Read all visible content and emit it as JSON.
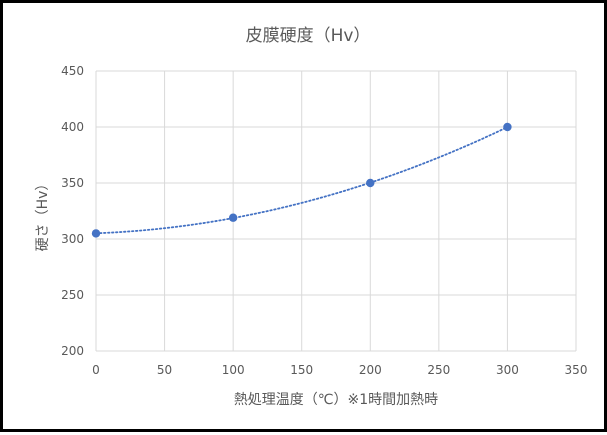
{
  "chart_data": {
    "type": "scatter",
    "title": "皮膜硬度（Hv）",
    "xlabel": "熱処理温度（℃）※1時間加熱時",
    "ylabel": "硬さ（Hv）",
    "xlim": [
      0,
      350
    ],
    "ylim": [
      200,
      450
    ],
    "xticks": [
      "0",
      "50",
      "100",
      "150",
      "200",
      "250",
      "300",
      "350"
    ],
    "yticks": [
      "200",
      "250",
      "300",
      "350",
      "400",
      "450"
    ],
    "grid": true,
    "legend": "none",
    "series": [
      {
        "x": [
          0,
          100,
          200,
          300
        ],
        "values": [
          305,
          319,
          350,
          400
        ],
        "trendline": "polynomial (dotted)"
      }
    ],
    "colors": {
      "series": "#4472C4",
      "grid": "#D9D9D9",
      "text": "#595959",
      "frame": "#000000"
    }
  }
}
